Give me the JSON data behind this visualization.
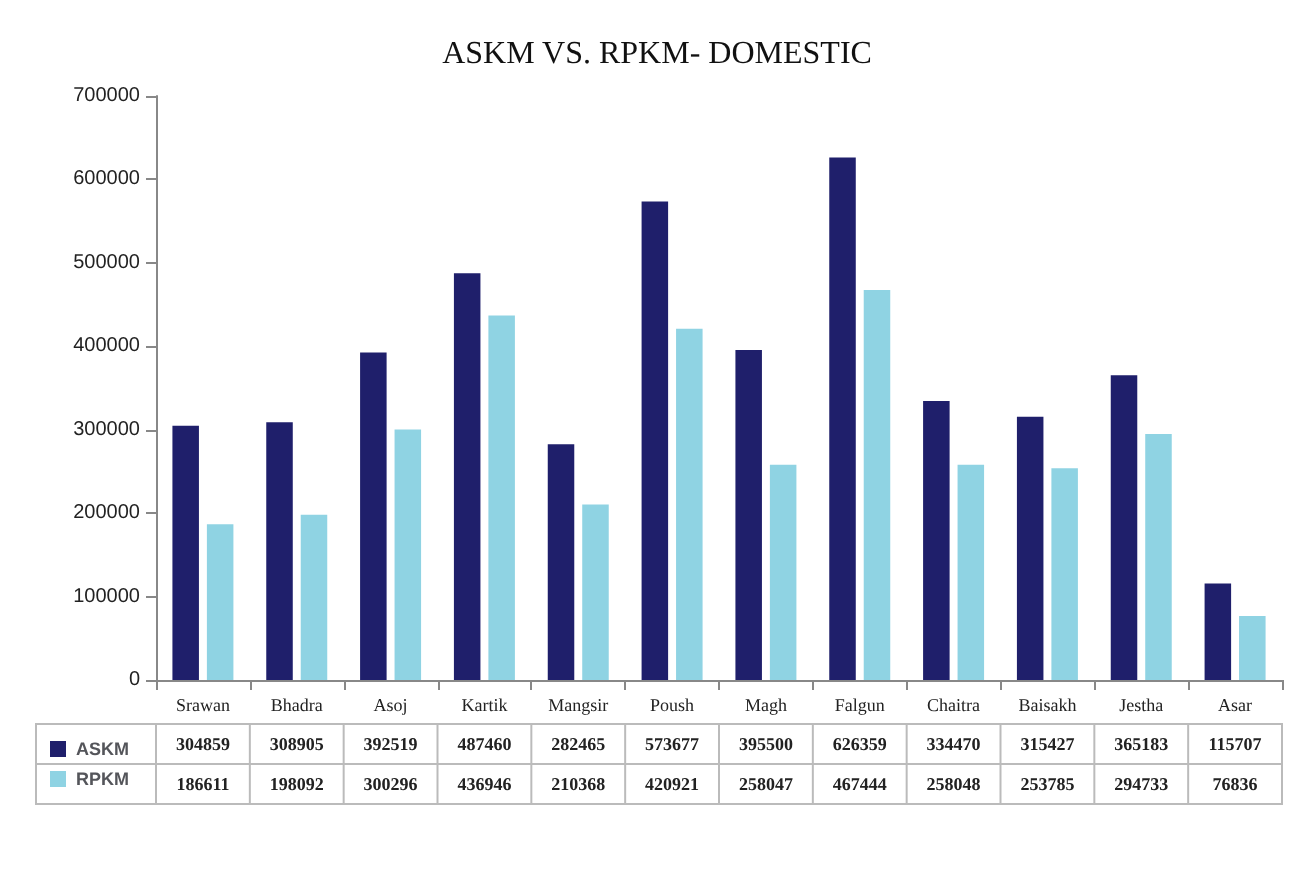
{
  "chart_data": {
    "type": "bar",
    "title": "ASKM VS. RPKM- DOMESTIC",
    "categories": [
      "Srawan",
      "Bhadra",
      "Asoj",
      "Kartik",
      "Mangsir",
      "Poush",
      "Magh",
      "Falgun",
      "Chaitra",
      "Baisakh",
      "Jestha",
      "Asar"
    ],
    "series": [
      {
        "name": "ASKM",
        "color": "#1f1f6b",
        "values": [
          304859,
          308905,
          392519,
          487460,
          282465,
          573677,
          395500,
          626359,
          334470,
          315427,
          365183,
          115707
        ]
      },
      {
        "name": "RPKM",
        "color": "#8fd3e3",
        "values": [
          186611,
          198092,
          300296,
          436946,
          210368,
          420921,
          258047,
          467444,
          258048,
          253785,
          294733,
          76836
        ]
      }
    ],
    "ylim": [
      0,
      700000
    ],
    "yticks": [
      0,
      100000,
      200000,
      300000,
      400000,
      500000,
      600000,
      700000
    ],
    "grid": false,
    "legend": "bottom",
    "data_labels": true
  }
}
